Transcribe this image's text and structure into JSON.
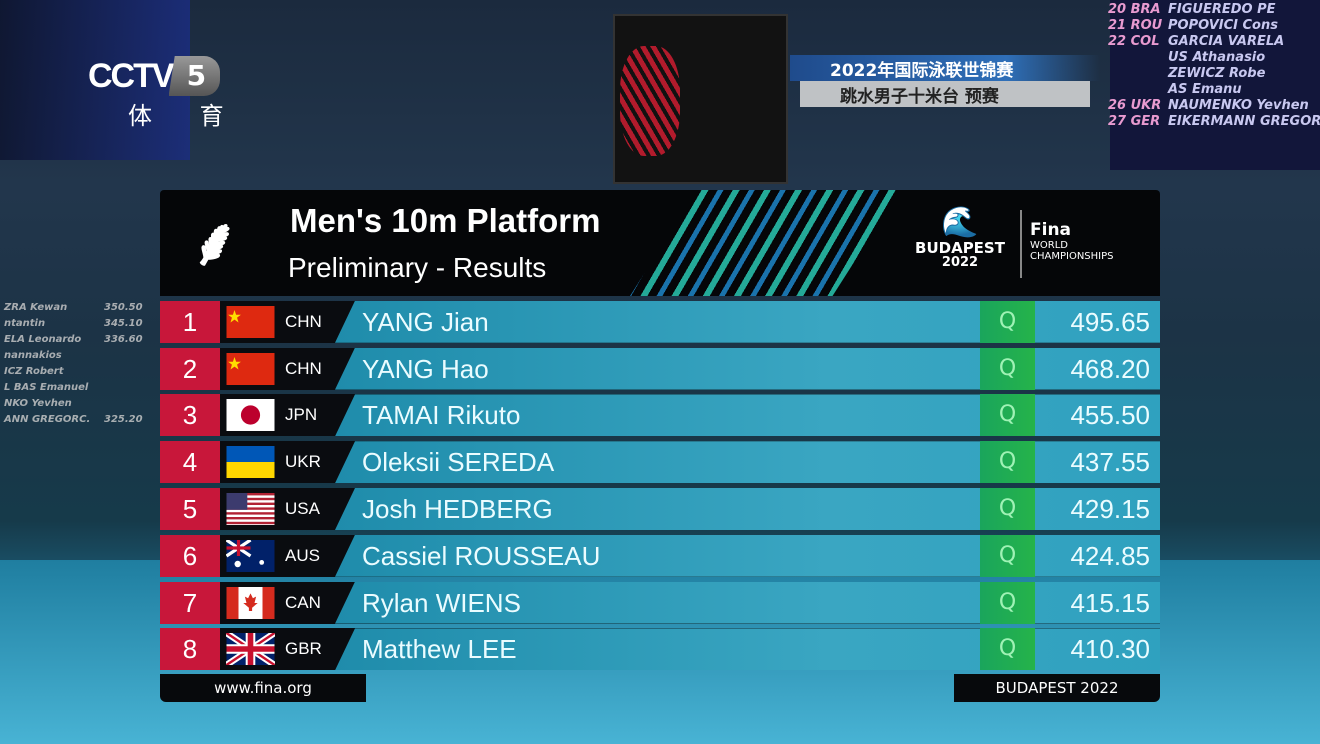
{
  "broadcast": {
    "channel_logo": "CCTV",
    "channel_number": "5",
    "channel_name": "体 育",
    "caption_line1": "2022年国际泳联世锦赛",
    "caption_line2": "跳水男子十米台 预赛"
  },
  "background_board": {
    "left": [
      {
        "name": "ZRA Kewan",
        "score": "350.50"
      },
      {
        "name": "ntantin",
        "score": "345.10"
      },
      {
        "name": "ELA Leonardo",
        "score": "336.60"
      },
      {
        "name": "nannakios",
        "score": ""
      },
      {
        "name": "ICZ Robert",
        "score": ""
      },
      {
        "name": "L BAS Emanuel",
        "score": ""
      },
      {
        "name": "NKO Yevhen",
        "score": ""
      },
      {
        "name": "ANN GREGORC.",
        "score": "325.20"
      }
    ],
    "right": [
      {
        "rank": "20 BRA",
        "name": "FIGUEREDO PE"
      },
      {
        "rank": "21 ROU",
        "name": "POPOVICI Cons"
      },
      {
        "rank": "22 COL",
        "name": "GARCIA VARELA"
      },
      {
        "rank": "",
        "name": "US Athanasio"
      },
      {
        "rank": "",
        "name": "ZEWICZ Robe"
      },
      {
        "rank": "",
        "name": "AS Emanu"
      },
      {
        "rank": "26 UKR",
        "name": "NAUMENKO Yevhen"
      },
      {
        "rank": "27 GER",
        "name": "EIKERMANN GREGORC."
      }
    ]
  },
  "header": {
    "title": "Men's 10m Platform",
    "subtitle": "Preliminary - Results",
    "event_logo": "BUDAPEST",
    "event_year": "2022",
    "org": "Fina",
    "org_sub1": "WORLD",
    "org_sub2": "CHAMPIONSHIPS",
    "sport_icon": "diving-icon"
  },
  "colors": {
    "rank": "#c8173a",
    "band": "#2fa1bf",
    "qualified": "#25b34a"
  },
  "results": [
    {
      "rank": "1",
      "flag": "china",
      "code": "CHN",
      "name": "YANG Jian",
      "q": "Q",
      "score": "495.65"
    },
    {
      "rank": "2",
      "flag": "china",
      "code": "CHN",
      "name": "YANG Hao",
      "q": "Q",
      "score": "468.20"
    },
    {
      "rank": "3",
      "flag": "japan",
      "code": "JPN",
      "name": "TAMAI Rikuto",
      "q": "Q",
      "score": "455.50"
    },
    {
      "rank": "4",
      "flag": "ukraine",
      "code": "UKR",
      "name": "Oleksii SEREDA",
      "q": "Q",
      "score": "437.55"
    },
    {
      "rank": "5",
      "flag": "usa",
      "code": "USA",
      "name": "Josh HEDBERG",
      "q": "Q",
      "score": "429.15"
    },
    {
      "rank": "6",
      "flag": "australia",
      "code": "AUS",
      "name": "Cassiel ROUSSEAU",
      "q": "Q",
      "score": "424.85"
    },
    {
      "rank": "7",
      "flag": "canada",
      "code": "CAN",
      "name": "Rylan WIENS",
      "q": "Q",
      "score": "415.15"
    },
    {
      "rank": "8",
      "flag": "uk",
      "code": "GBR",
      "name": "Matthew LEE",
      "q": "Q",
      "score": "410.30"
    }
  ],
  "footer": {
    "website": "www.fina.org",
    "event": "BUDAPEST 2022"
  }
}
